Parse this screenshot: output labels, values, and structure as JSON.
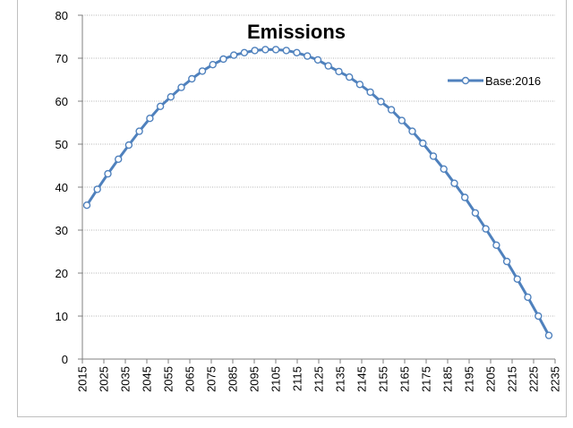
{
  "chart_data": {
    "type": "line",
    "title": "Emissions",
    "xlabel": "",
    "ylabel": "",
    "ylim": [
      0,
      80
    ],
    "y_ticks": [
      0,
      10,
      20,
      30,
      40,
      50,
      60,
      70,
      80
    ],
    "x_tick_labels": [
      "2015",
      "2025",
      "2035",
      "2045",
      "2055",
      "2065",
      "2075",
      "2085",
      "2095",
      "2105",
      "2115",
      "2125",
      "2135",
      "2145",
      "2155",
      "2165",
      "2175",
      "2185",
      "2195",
      "2205",
      "2215",
      "2225",
      "2235"
    ],
    "grid": "horizontal-dotted",
    "legend_position": "right",
    "x": [
      2015,
      2020,
      2025,
      2030,
      2035,
      2040,
      2045,
      2050,
      2055,
      2060,
      2065,
      2070,
      2075,
      2080,
      2085,
      2090,
      2095,
      2100,
      2105,
      2110,
      2115,
      2120,
      2125,
      2130,
      2135,
      2140,
      2145,
      2150,
      2155,
      2160,
      2165,
      2170,
      2175,
      2180,
      2185,
      2190,
      2195,
      2200,
      2205,
      2210,
      2215,
      2220,
      2225,
      2230,
      2235
    ],
    "series": [
      {
        "name": "Base:2016",
        "color": "#4f81bd",
        "values": [
          35.8,
          39.5,
          43.1,
          46.5,
          49.8,
          53.0,
          56.0,
          58.8,
          61.0,
          63.2,
          65.2,
          67.0,
          68.5,
          69.8,
          70.7,
          71.3,
          71.8,
          72.0,
          72.0,
          71.8,
          71.3,
          70.5,
          69.6,
          68.2,
          66.9,
          65.6,
          63.9,
          62.1,
          59.9,
          58.0,
          55.5,
          53.0,
          50.2,
          47.2,
          44.2,
          40.9,
          37.6,
          34.0,
          30.3,
          26.5,
          22.7,
          18.6,
          14.4,
          10.0,
          5.5
        ]
      }
    ]
  }
}
